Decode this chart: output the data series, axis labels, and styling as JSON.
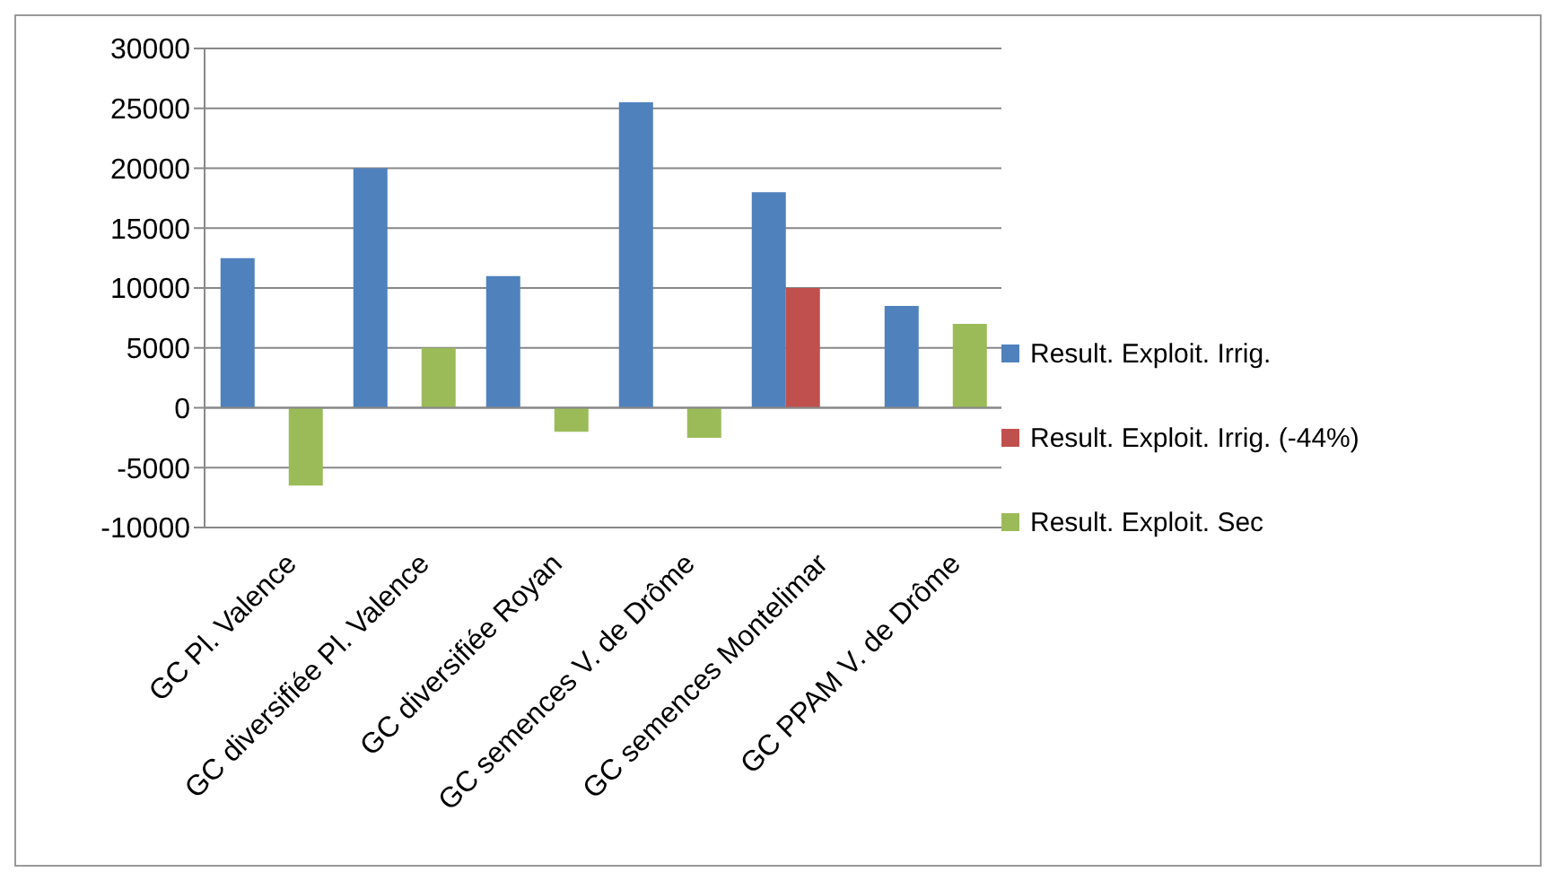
{
  "chart_data": {
    "type": "bar",
    "categories": [
      "GC Pl. Valence",
      "GC diversifiée Pl. Valence",
      "GC diversifiée Royan",
      "GC semences V. de Drôme",
      "GC semences Montelimar",
      "GC PPAM V. de Drôme"
    ],
    "series": [
      {
        "name": "Result. Exploit. Irrig.",
        "color": "#4f81bd",
        "values": [
          12500,
          20000,
          11000,
          25500,
          18000,
          8500
        ]
      },
      {
        "name": "Result. Exploit. Irrig. (-44%)",
        "color": "#c0504d",
        "values": [
          null,
          null,
          null,
          null,
          10000,
          null
        ]
      },
      {
        "name": "Result. Exploit. Sec",
        "color": "#9bbb59",
        "values": [
          -6500,
          5000,
          -2000,
          -2500,
          null,
          7000
        ]
      }
    ],
    "ylim": [
      -10000,
      30000
    ],
    "yticks": [
      -10000,
      -5000,
      0,
      5000,
      10000,
      15000,
      20000,
      25000,
      30000
    ],
    "grid": "y",
    "legend": "right"
  }
}
